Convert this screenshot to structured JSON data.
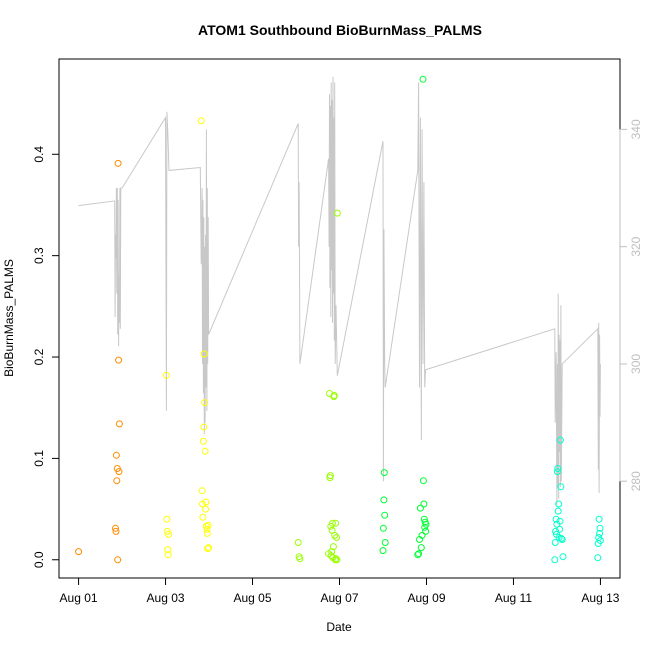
{
  "chart_data": {
    "type": "scatter",
    "title": "ATOM1 Southbound BioBurnMass_PALMS",
    "xlabel": "Date",
    "ylabel": "BioBurnMass_PALMS",
    "x_ticks": [
      {
        "value": 1,
        "label": "Aug 01"
      },
      {
        "value": 3,
        "label": "Aug 03"
      },
      {
        "value": 5,
        "label": "Aug 05"
      },
      {
        "value": 7,
        "label": "Aug 07"
      },
      {
        "value": 9,
        "label": "Aug 09"
      },
      {
        "value": 11,
        "label": "Aug 11"
      },
      {
        "value": 13,
        "label": "Aug 13"
      }
    ],
    "y_ticks": [
      "0.0",
      "0.1",
      "0.2",
      "0.3",
      "0.4"
    ],
    "y_right_ticks": [
      "280",
      "300",
      "320",
      "340"
    ],
    "xlim": [
      0.55,
      13.45
    ],
    "ylim": [
      -0.018,
      0.494
    ],
    "y_right_lim": [
      263.5,
      352
    ],
    "grid": false,
    "series": [
      {
        "color": "#ff8c00",
        "points": [
          [
            1.0,
            0.008
          ],
          [
            1.85,
            0.031
          ],
          [
            1.86,
            0.028
          ],
          [
            1.87,
            0.103
          ],
          [
            1.88,
            0.078
          ],
          [
            1.89,
            0.09
          ],
          [
            1.9,
            0.0
          ],
          [
            1.91,
            0.391
          ],
          [
            1.92,
            0.197
          ],
          [
            1.93,
            0.087
          ],
          [
            1.94,
            0.134
          ]
        ]
      },
      {
        "color": "#ffff00",
        "points": [
          [
            3.02,
            0.182
          ],
          [
            3.03,
            0.04
          ],
          [
            3.04,
            0.028
          ],
          [
            3.05,
            0.01
          ],
          [
            3.06,
            0.005
          ],
          [
            3.07,
            0.025
          ],
          [
            3.82,
            0.433
          ],
          [
            3.84,
            0.068
          ],
          [
            3.85,
            0.055
          ],
          [
            3.86,
            0.042
          ],
          [
            3.87,
            0.117
          ],
          [
            3.88,
            0.131
          ],
          [
            3.89,
            0.203
          ],
          [
            3.9,
            0.155
          ],
          [
            3.91,
            0.107
          ],
          [
            3.92,
            0.05
          ],
          [
            3.93,
            0.057
          ],
          [
            3.94,
            0.033
          ],
          [
            3.95,
            0.03
          ],
          [
            3.96,
            0.026
          ],
          [
            3.97,
            0.011
          ],
          [
            3.98,
            0.034
          ],
          [
            3.99,
            0.012
          ]
        ]
      },
      {
        "color": "#99ff00",
        "points": [
          [
            6.05,
            0.017
          ],
          [
            6.07,
            0.003
          ],
          [
            6.09,
            0.001
          ],
          [
            6.75,
            0.006
          ],
          [
            6.77,
            0.164
          ],
          [
            6.78,
            0.081
          ],
          [
            6.79,
            0.083
          ],
          [
            6.8,
            0.033
          ],
          [
            6.81,
            0.004
          ],
          [
            6.82,
            0.008
          ],
          [
            6.83,
            0.029
          ],
          [
            6.84,
            0.036
          ],
          [
            6.85,
            0.002
          ],
          [
            6.86,
            0.013
          ],
          [
            6.87,
            0.161
          ],
          [
            6.88,
            0.162
          ],
          [
            6.89,
            0.024
          ],
          [
            6.9,
            0.0
          ],
          [
            6.91,
            0.036
          ],
          [
            6.92,
            0.001
          ],
          [
            6.93,
            0.022
          ],
          [
            6.94,
            0.0
          ],
          [
            6.95,
            0.342
          ]
        ]
      },
      {
        "color": "#00ff33",
        "points": [
          [
            8.0,
            0.009
          ],
          [
            8.01,
            0.031
          ],
          [
            8.02,
            0.059
          ],
          [
            8.03,
            0.086
          ],
          [
            8.04,
            0.044
          ],
          [
            8.05,
            0.017
          ],
          [
            8.8,
            0.005
          ],
          [
            8.82,
            0.006
          ],
          [
            8.84,
            0.02
          ],
          [
            8.86,
            0.051
          ],
          [
            8.88,
            0.012
          ],
          [
            8.9,
            0.024
          ],
          [
            8.92,
            0.474
          ],
          [
            8.93,
            0.078
          ],
          [
            8.94,
            0.055
          ],
          [
            8.95,
            0.04
          ],
          [
            8.96,
            0.032
          ],
          [
            8.97,
            0.037
          ],
          [
            8.98,
            0.028
          ],
          [
            8.99,
            0.035
          ]
        ]
      },
      {
        "color": "#00ffcc",
        "points": [
          [
            11.95,
            0.0
          ],
          [
            11.96,
            0.017
          ],
          [
            11.97,
            0.028
          ],
          [
            11.98,
            0.04
          ],
          [
            11.99,
            0.025
          ],
          [
            12.0,
            0.035
          ],
          [
            12.01,
            0.087
          ],
          [
            12.02,
            0.09
          ],
          [
            12.03,
            0.048
          ],
          [
            12.04,
            0.055
          ],
          [
            12.05,
            0.022
          ],
          [
            12.06,
            0.03
          ],
          [
            12.07,
            0.038
          ],
          [
            12.08,
            0.118
          ],
          [
            12.09,
            0.072
          ],
          [
            12.1,
            0.021
          ],
          [
            12.12,
            0.02
          ],
          [
            12.14,
            0.003
          ],
          [
            12.94,
            0.002
          ],
          [
            12.95,
            0.016
          ],
          [
            12.96,
            0.022
          ],
          [
            12.97,
            0.04
          ],
          [
            12.98,
            0.026
          ],
          [
            12.99,
            0.031
          ],
          [
            13.0,
            0.019
          ]
        ]
      }
    ],
    "right_axis_line": {
      "color": "#c8c8c8",
      "points": [
        [
          1.0,
          327.0
        ],
        [
          1.83,
          327.8
        ],
        [
          1.84,
          308.0
        ],
        [
          1.85,
          322.0
        ],
        [
          1.86,
          318.0
        ],
        [
          1.87,
          330.0
        ],
        [
          1.88,
          312.0
        ],
        [
          1.89,
          330.0
        ],
        [
          1.9,
          305.0
        ],
        [
          1.91,
          328.0
        ],
        [
          1.92,
          303.0
        ],
        [
          1.93,
          315.0
        ],
        [
          1.94,
          307.0
        ],
        [
          1.95,
          330.0
        ],
        [
          1.96,
          306.0
        ],
        [
          1.97,
          330.0
        ],
        [
          2.0,
          330.0
        ],
        [
          3.0,
          342.0
        ],
        [
          3.02,
          292.0
        ],
        [
          3.03,
          343.0
        ],
        [
          3.05,
          340.0
        ],
        [
          3.08,
          333.0
        ],
        [
          3.8,
          333.5
        ],
        [
          3.82,
          317.0
        ],
        [
          3.84,
          330.0
        ],
        [
          3.85,
          300.0
        ],
        [
          3.86,
          328.0
        ],
        [
          3.87,
          295.0
        ],
        [
          3.88,
          325.0
        ],
        [
          3.89,
          288.0
        ],
        [
          3.9,
          320.0
        ],
        [
          3.91,
          290.0
        ],
        [
          3.92,
          322.0
        ],
        [
          3.93,
          296.0
        ],
        [
          3.94,
          340.0
        ],
        [
          3.95,
          292.0
        ],
        [
          3.96,
          330.0
        ],
        [
          3.97,
          300.0
        ],
        [
          3.98,
          325.0
        ],
        [
          3.99,
          305.0
        ],
        [
          6.05,
          341.0
        ],
        [
          6.06,
          320.0
        ],
        [
          6.07,
          331.0
        ],
        [
          6.08,
          318.0
        ],
        [
          6.09,
          300.0
        ],
        [
          6.75,
          335.0
        ],
        [
          6.76,
          320.0
        ],
        [
          6.77,
          346.0
        ],
        [
          6.78,
          313.0
        ],
        [
          6.79,
          344.0
        ],
        [
          6.8,
          308.0
        ],
        [
          6.81,
          348.0
        ],
        [
          6.82,
          316.0
        ],
        [
          6.83,
          345.0
        ],
        [
          6.84,
          307.0
        ],
        [
          6.85,
          349.0
        ],
        [
          6.86,
          312.0
        ],
        [
          6.87,
          342.0
        ],
        [
          6.88,
          304.0
        ],
        [
          6.89,
          348.0
        ],
        [
          6.9,
          300.0
        ],
        [
          6.92,
          310.0
        ],
        [
          6.95,
          298.0
        ],
        [
          8.0,
          338.0
        ],
        [
          8.01,
          280.0
        ],
        [
          8.02,
          323.0
        ],
        [
          8.04,
          300.0
        ],
        [
          8.05,
          296.0
        ],
        [
          8.8,
          333.0
        ],
        [
          8.82,
          348.0
        ],
        [
          8.84,
          296.0
        ],
        [
          8.86,
          342.0
        ],
        [
          8.88,
          287.0
        ],
        [
          8.9,
          340.0
        ],
        [
          8.92,
          300.0
        ],
        [
          8.94,
          331.0
        ],
        [
          8.96,
          296.0
        ],
        [
          8.98,
          299.0
        ],
        [
          11.95,
          306.0
        ],
        [
          11.96,
          290.0
        ],
        [
          11.98,
          302.0
        ],
        [
          12.0,
          276.0
        ],
        [
          12.01,
          300.0
        ],
        [
          12.02,
          279.0
        ],
        [
          12.03,
          312.0
        ],
        [
          12.04,
          277.0
        ],
        [
          12.05,
          305.0
        ],
        [
          12.06,
          285.0
        ],
        [
          12.07,
          304.0
        ],
        [
          12.08,
          279.0
        ],
        [
          12.09,
          310.0
        ],
        [
          12.1,
          280.0
        ],
        [
          12.12,
          300.0
        ],
        [
          12.94,
          306.0
        ],
        [
          12.95,
          282.0
        ],
        [
          12.96,
          307.0
        ],
        [
          12.97,
          278.0
        ],
        [
          12.98,
          305.0
        ],
        [
          12.99,
          291.0
        ],
        [
          13.0,
          300.0
        ]
      ]
    }
  }
}
